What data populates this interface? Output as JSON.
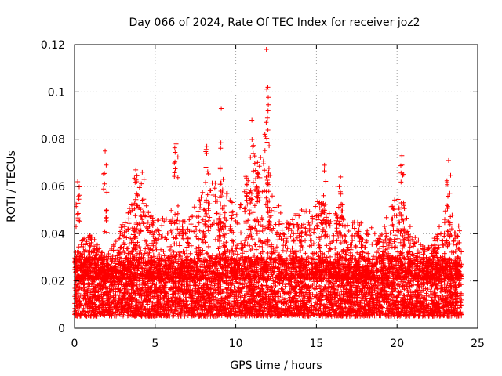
{
  "chart_data": {
    "type": "scatter",
    "title": "Day 066 of 2024, Rate Of TEC Index for receiver joz2",
    "xlabel": "GPS time / hours",
    "ylabel": "ROTI / TECUs",
    "xlim": [
      0,
      25
    ],
    "ylim": [
      0,
      0.12
    ],
    "xticks": [
      0,
      5,
      10,
      15,
      20,
      25
    ],
    "yticks": [
      0,
      0.02,
      0.04,
      0.06,
      0.08,
      0.1,
      0.12
    ],
    "xtick_labels": [
      "0",
      "5",
      "10",
      "15",
      "20",
      "25"
    ],
    "ytick_labels": [
      "0",
      "0.02",
      "0.04",
      "0.06",
      "0.08",
      "0.1",
      "0.12"
    ],
    "grid": true,
    "marker": "+",
    "series_color": "#ff0000",
    "data_range_hours": [
      0,
      24
    ],
    "baseline_band": [
      0.005,
      0.03
    ],
    "notable_peaks": [
      {
        "x": 0.2,
        "y": 0.062
      },
      {
        "x": 1.9,
        "y": 0.075
      },
      {
        "x": 3.8,
        "y": 0.067
      },
      {
        "x": 4.2,
        "y": 0.066
      },
      {
        "x": 6.3,
        "y": 0.078
      },
      {
        "x": 8.2,
        "y": 0.077
      },
      {
        "x": 9.1,
        "y": 0.093
      },
      {
        "x": 11.0,
        "y": 0.088
      },
      {
        "x": 11.4,
        "y": 0.065
      },
      {
        "x": 11.9,
        "y": 0.118
      },
      {
        "x": 12.0,
        "y": 0.092
      },
      {
        "x": 15.5,
        "y": 0.069
      },
      {
        "x": 16.5,
        "y": 0.064
      },
      {
        "x": 20.3,
        "y": 0.073
      },
      {
        "x": 23.2,
        "y": 0.071
      }
    ],
    "activity_envelope": [
      {
        "x": 0,
        "y": 0.035
      },
      {
        "x": 1,
        "y": 0.04
      },
      {
        "x": 2,
        "y": 0.03
      },
      {
        "x": 3,
        "y": 0.045
      },
      {
        "x": 4,
        "y": 0.06
      },
      {
        "x": 5,
        "y": 0.045
      },
      {
        "x": 6,
        "y": 0.05
      },
      {
        "x": 7,
        "y": 0.045
      },
      {
        "x": 8,
        "y": 0.06
      },
      {
        "x": 9,
        "y": 0.065
      },
      {
        "x": 10,
        "y": 0.05
      },
      {
        "x": 11,
        "y": 0.075
      },
      {
        "x": 12,
        "y": 0.07
      },
      {
        "x": 13,
        "y": 0.045
      },
      {
        "x": 14,
        "y": 0.05
      },
      {
        "x": 15,
        "y": 0.055
      },
      {
        "x": 16,
        "y": 0.05
      },
      {
        "x": 17,
        "y": 0.045
      },
      {
        "x": 18,
        "y": 0.045
      },
      {
        "x": 19,
        "y": 0.04
      },
      {
        "x": 20,
        "y": 0.06
      },
      {
        "x": 21,
        "y": 0.04
      },
      {
        "x": 22,
        "y": 0.035
      },
      {
        "x": 23,
        "y": 0.05
      },
      {
        "x": 24,
        "y": 0.045
      }
    ]
  }
}
